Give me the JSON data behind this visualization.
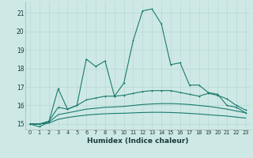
{
  "xlabel": "Humidex (Indice chaleur)",
  "x": [
    0,
    1,
    2,
    3,
    4,
    5,
    6,
    7,
    8,
    9,
    10,
    11,
    12,
    13,
    14,
    15,
    16,
    17,
    18,
    19,
    20,
    21,
    22,
    23
  ],
  "line_main": [
    15.0,
    14.85,
    15.1,
    16.9,
    15.8,
    16.0,
    18.5,
    18.1,
    18.4,
    16.5,
    17.2,
    19.5,
    21.1,
    21.2,
    20.4,
    18.2,
    18.3,
    17.1,
    17.1,
    16.7,
    16.6,
    16.0,
    15.9,
    15.6
  ],
  "line_upper": [
    15.0,
    15.0,
    15.15,
    15.9,
    15.8,
    16.0,
    16.3,
    16.4,
    16.5,
    16.5,
    16.55,
    16.65,
    16.75,
    16.8,
    16.8,
    16.8,
    16.7,
    16.6,
    16.5,
    16.65,
    16.55,
    16.35,
    16.0,
    15.75
  ],
  "line_mid": [
    15.0,
    15.0,
    15.1,
    15.5,
    15.6,
    15.7,
    15.8,
    15.85,
    15.9,
    15.92,
    15.95,
    16.0,
    16.05,
    16.08,
    16.1,
    16.1,
    16.08,
    16.05,
    16.0,
    15.95,
    15.88,
    15.8,
    15.7,
    15.6
  ],
  "line_lower": [
    15.0,
    15.0,
    15.05,
    15.25,
    15.35,
    15.42,
    15.48,
    15.52,
    15.55,
    15.57,
    15.58,
    15.6,
    15.62,
    15.63,
    15.63,
    15.62,
    15.6,
    15.57,
    15.54,
    15.5,
    15.46,
    15.43,
    15.37,
    15.32
  ],
  "color": "#1a7a6e",
  "bg_color": "#cee9e5",
  "grid_color": "#b8d8d4",
  "ylim": [
    14.7,
    21.6
  ],
  "yticks": [
    15,
    16,
    17,
    18,
    19,
    20,
    21
  ],
  "xlim": [
    -0.5,
    23.5
  ],
  "xticks": [
    0,
    1,
    2,
    3,
    4,
    5,
    6,
    7,
    8,
    9,
    10,
    11,
    12,
    13,
    14,
    15,
    16,
    17,
    18,
    19,
    20,
    21,
    22,
    23
  ]
}
